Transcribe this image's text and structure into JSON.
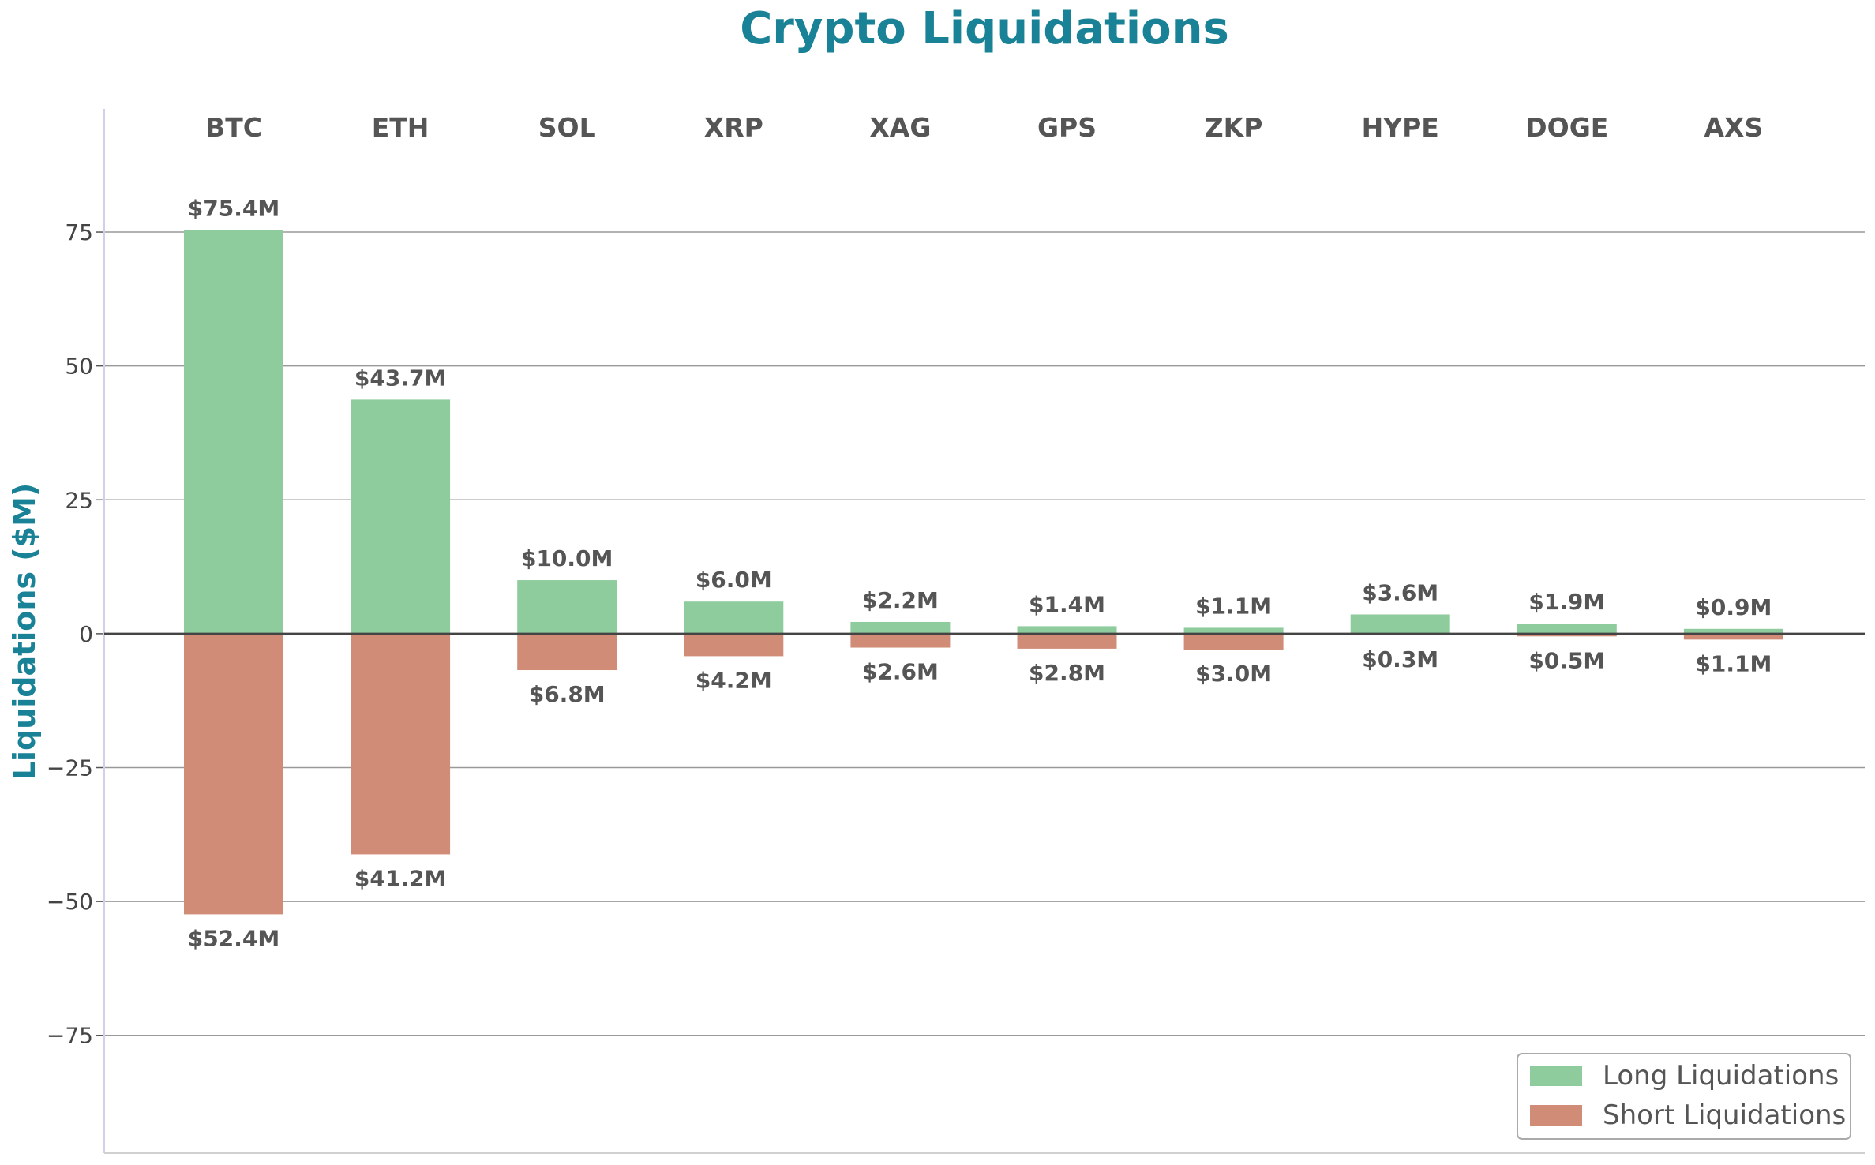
{
  "chart_data": {
    "type": "bar",
    "title": "Crypto Liquidations",
    "ylabel": "Liquidations ($M)",
    "xlabel": "",
    "ylim": [
      -97,
      98
    ],
    "yticks": [
      -75,
      -50,
      -25,
      0,
      25,
      50,
      75
    ],
    "ytick_labels": [
      "−75",
      "−50",
      "−25",
      "0",
      "25",
      "50",
      "75"
    ],
    "grid": true,
    "legend_position": "bottom-right",
    "categories": [
      "BTC",
      "ETH",
      "SOL",
      "XRP",
      "XAG",
      "GPS",
      "ZKP",
      "HYPE",
      "DOGE",
      "AXS"
    ],
    "series": [
      {
        "name": "Long Liquidations",
        "color": "#8fcc9d",
        "values": [
          75.4,
          43.7,
          10.0,
          6.0,
          2.2,
          1.4,
          1.1,
          3.6,
          1.9,
          0.9
        ],
        "labels": [
          "$75.4M",
          "$43.7M",
          "$10.0M",
          "$6.0M",
          "$2.2M",
          "$1.4M",
          "$1.1M",
          "$3.6M",
          "$1.9M",
          "$0.9M"
        ]
      },
      {
        "name": "Short Liquidations",
        "color": "#d18c77",
        "values": [
          -52.4,
          -41.2,
          -6.8,
          -4.2,
          -2.6,
          -2.8,
          -3.0,
          -0.3,
          -0.5,
          -1.1
        ],
        "labels": [
          "$52.4M",
          "$41.2M",
          "$6.8M",
          "$4.2M",
          "$2.6M",
          "$2.8M",
          "$3.0M",
          "$0.3M",
          "$0.5M",
          "$1.1M"
        ]
      }
    ],
    "colors": {
      "title": "#1a8296",
      "ylabel": "#1a8296",
      "grid": "#999999",
      "zero_line": "#444444"
    }
  }
}
